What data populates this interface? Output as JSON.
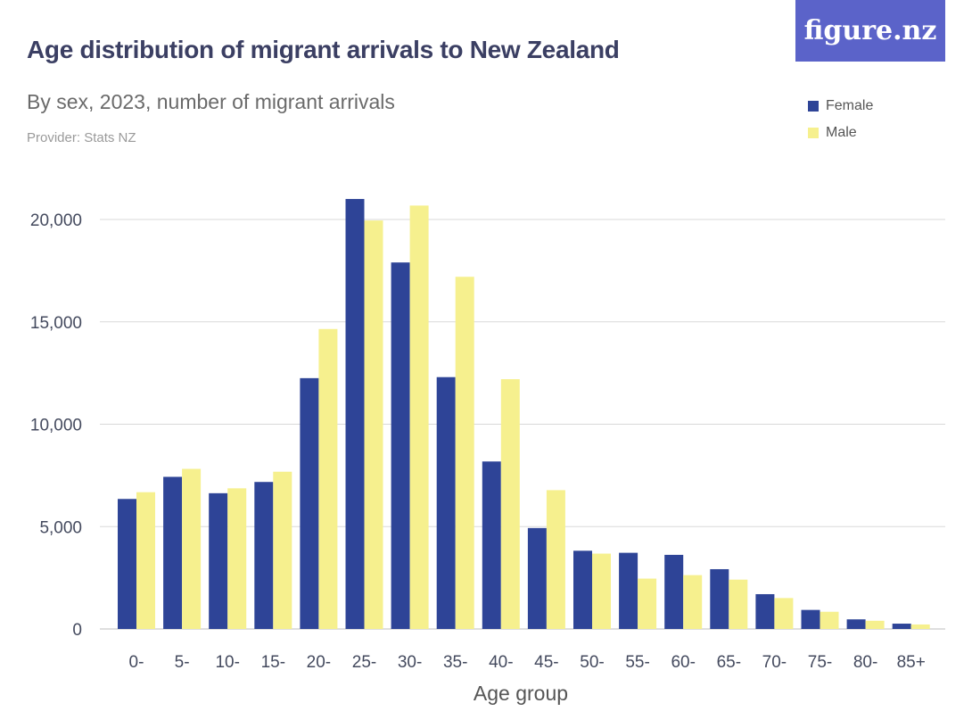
{
  "header": {
    "title": "Age distribution of migrant arrivals to New Zealand",
    "subtitle": "By sex, 2023, number of migrant arrivals",
    "provider": "Provider: Stats NZ",
    "logo_text": "figure.nz"
  },
  "colors": {
    "female": "#2e4497",
    "male": "#f6f08e",
    "grid": "#d9d9d9",
    "logo_bg": "#5b63c9"
  },
  "chart_data": {
    "type": "bar",
    "title": "Age distribution of migrant arrivals to New Zealand",
    "subtitle": "By sex, 2023, number of migrant arrivals",
    "xlabel": "Age group",
    "ylabel": "",
    "ylim": [
      0,
      22000
    ],
    "yticks": [
      0,
      5000,
      10000,
      15000,
      20000
    ],
    "ytick_labels": [
      "0",
      "5,000",
      "10,000",
      "15,000",
      "20,000"
    ],
    "grid": true,
    "legend_position": "top-right",
    "categories": [
      "0-",
      "5-",
      "10-",
      "15-",
      "20-",
      "25-",
      "30-",
      "35-",
      "40-",
      "45-",
      "50-",
      "55-",
      "60-",
      "65-",
      "70-",
      "75-",
      "80-",
      "85+"
    ],
    "series": [
      {
        "name": "Female",
        "color": "#2e4497",
        "values": [
          6350,
          7430,
          6630,
          7180,
          12250,
          21000,
          17900,
          12300,
          8180,
          4930,
          3820,
          3720,
          3620,
          2920,
          1700,
          930,
          470,
          260
        ]
      },
      {
        "name": "Male",
        "color": "#f6f08e",
        "values": [
          6680,
          7820,
          6870,
          7680,
          14650,
          19950,
          20680,
          17200,
          12200,
          6780,
          3680,
          2460,
          2630,
          2410,
          1510,
          840,
          400,
          220
        ]
      }
    ]
  }
}
